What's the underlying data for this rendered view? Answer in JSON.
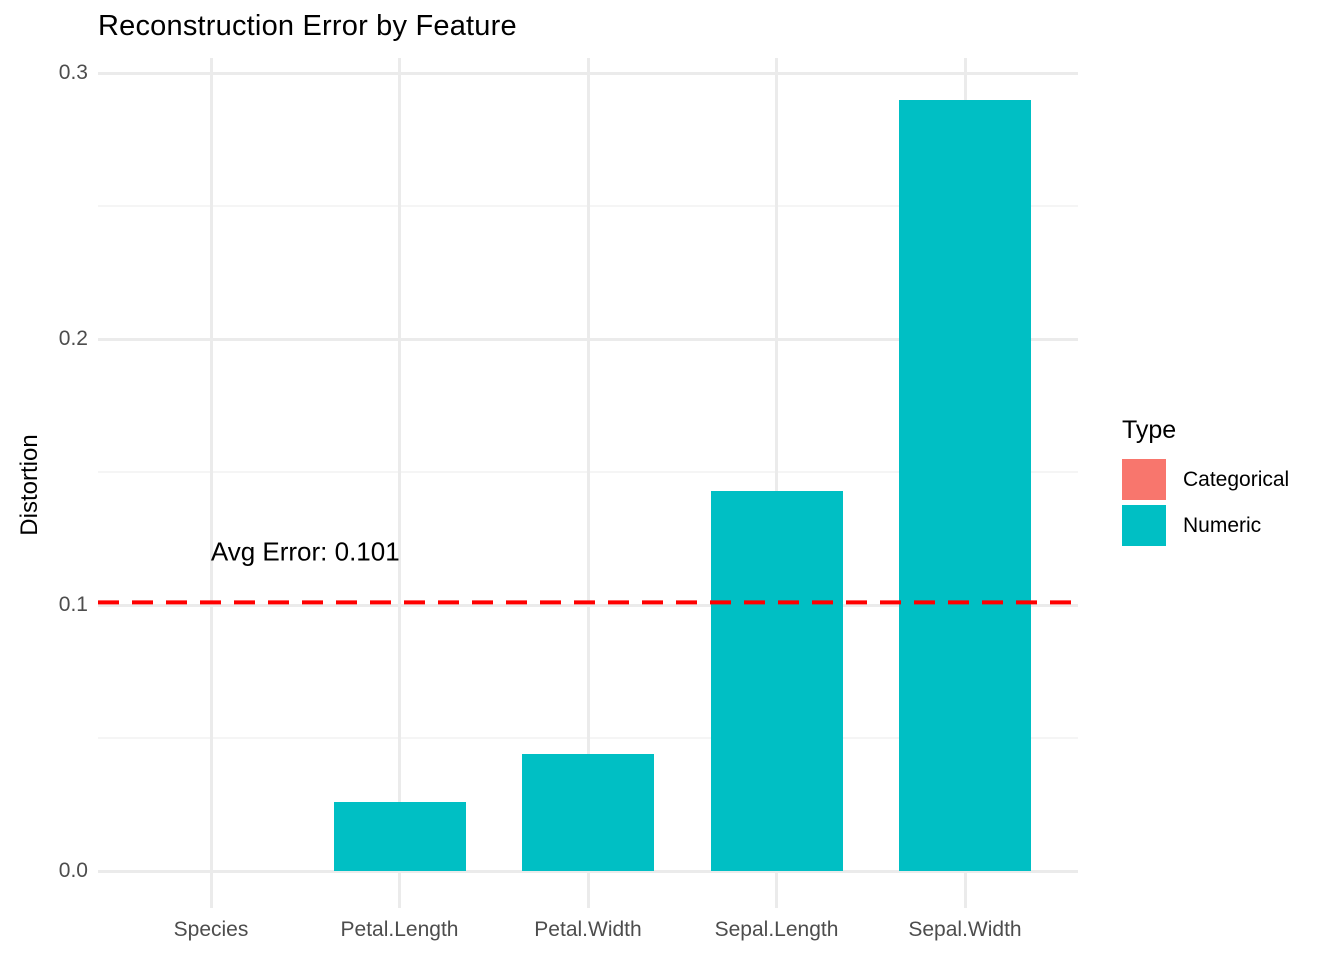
{
  "title": "Reconstruction Error by Feature",
  "chart_data": {
    "type": "bar",
    "title": "Reconstruction Error by Feature",
    "xlabel": "",
    "ylabel": "Distortion",
    "categories": [
      "Species",
      "Petal.Length",
      "Petal.Width",
      "Sepal.Length",
      "Sepal.Width"
    ],
    "values": [
      0,
      0.026,
      0.044,
      0.143,
      0.29
    ],
    "bar_types": [
      "Categorical",
      "Numeric",
      "Numeric",
      "Numeric",
      "Numeric"
    ],
    "type_colors": {
      "Categorical": "#F8766D",
      "Numeric": "#00BFC4"
    },
    "ylim": [
      0,
      0.3
    ],
    "y_major_ticks": [
      0.0,
      0.1,
      0.2,
      0.3
    ],
    "y_tick_labels": [
      "0.0",
      "0.1",
      "0.2",
      "0.3"
    ],
    "y_minor_ticks": [
      0.05,
      0.15,
      0.25
    ],
    "grid": "horizontal major+minor and vertical category gridlines, light grey on white",
    "legend_position": "right",
    "hline": {
      "value": 0.101,
      "color": "#FF0000",
      "style": "dashed"
    },
    "annotation": {
      "text": "Avg Error: 0.101",
      "x": 1.5,
      "y": 0.12
    },
    "legend": {
      "title": "Type",
      "entries": [
        {
          "label": "Categorical",
          "color": "#F8766D"
        },
        {
          "label": "Numeric",
          "color": "#00BFC4"
        }
      ]
    }
  },
  "colors": {
    "background": "#FFFFFF",
    "grid_major": "#EBEBEB",
    "grid_minor": "#F5F5F5",
    "axis_text": "#4D4D4D",
    "title_text": "#000000"
  }
}
